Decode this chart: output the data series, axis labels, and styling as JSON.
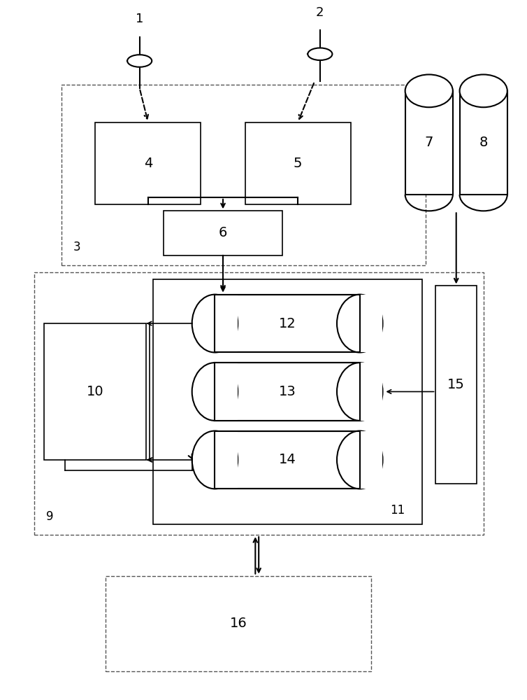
{
  "fig_width": 7.54,
  "fig_height": 10.0,
  "bg_color": "#ffffff",
  "line_color": "#000000",
  "dashed_color": "#555555",
  "label_color": "#000000"
}
